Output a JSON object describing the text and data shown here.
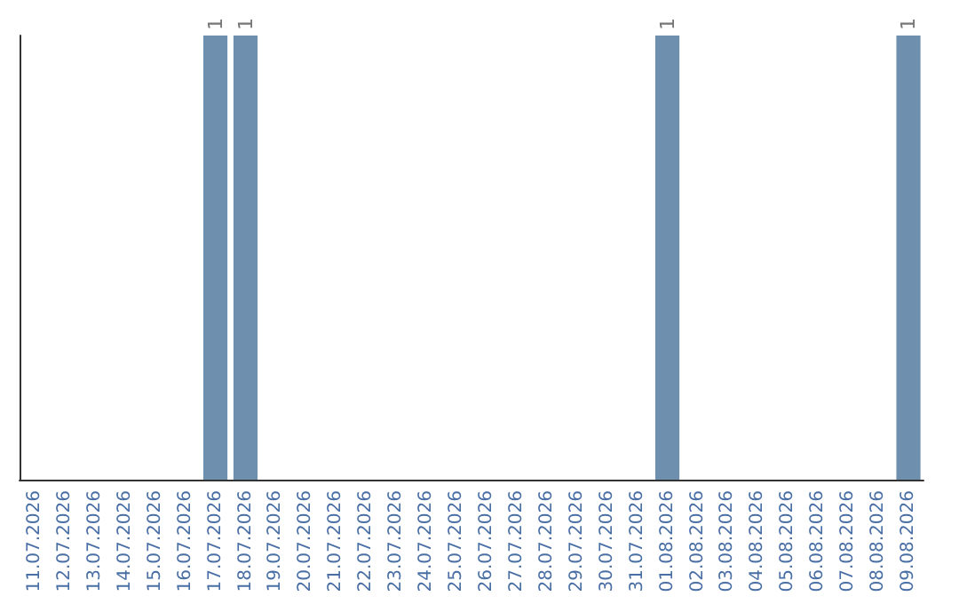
{
  "chart_data": {
    "type": "bar",
    "categories": [
      "11.07.2026",
      "12.07.2026",
      "13.07.2026",
      "14.07.2026",
      "15.07.2026",
      "16.07.2026",
      "17.07.2026",
      "18.07.2026",
      "19.07.2026",
      "20.07.2026",
      "21.07.2026",
      "22.07.2026",
      "23.07.2026",
      "24.07.2026",
      "25.07.2026",
      "26.07.2026",
      "27.07.2026",
      "28.07.2026",
      "29.07.2026",
      "30.07.2026",
      "31.07.2026",
      "01.08.2026",
      "02.08.2026",
      "03.08.2026",
      "04.08.2026",
      "05.08.2026",
      "06.08.2026",
      "07.08.2026",
      "08.08.2026",
      "09.08.2026"
    ],
    "values": [
      0,
      0,
      0,
      0,
      0,
      0,
      1,
      1,
      0,
      0,
      0,
      0,
      0,
      0,
      0,
      0,
      0,
      0,
      0,
      0,
      0,
      1,
      0,
      0,
      0,
      0,
      0,
      0,
      0,
      1
    ],
    "value_labels": [
      null,
      null,
      null,
      null,
      null,
      null,
      "1",
      "1",
      null,
      null,
      null,
      null,
      null,
      null,
      null,
      null,
      null,
      null,
      null,
      null,
      null,
      "1",
      null,
      null,
      null,
      null,
      null,
      null,
      null,
      "1"
    ],
    "color": "#6e8fad",
    "grid": false
  }
}
